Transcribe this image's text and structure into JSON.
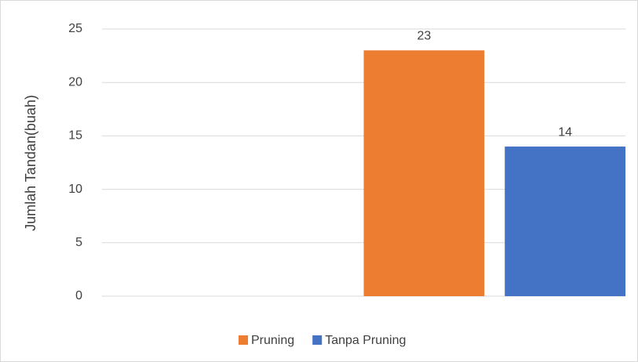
{
  "chart_data": {
    "type": "bar",
    "y_label": "Jumlah Tandan(buah)",
    "categories": [
      null,
      null
    ],
    "series": [
      {
        "name": "Pruning",
        "color": "#ed7d31",
        "values": [
          null,
          23
        ]
      },
      {
        "name": "Tanpa Pruning",
        "color": "#4472c4",
        "values": [
          null,
          14
        ]
      }
    ],
    "ylim": [
      0,
      25
    ],
    "yticks": [
      0,
      5,
      10,
      15,
      20,
      25
    ],
    "grid": true,
    "legend": "bottom",
    "data_labels": true
  }
}
